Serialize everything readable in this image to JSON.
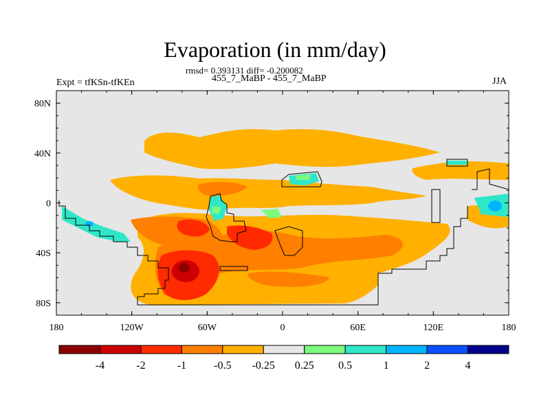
{
  "title": "Evaporation (in mm/day)",
  "stats_line": "rmsd= 0.393131 diff= -0.200082",
  "periods_line": "455_7_MaBP - 455_7_MaBP",
  "experiment": "Expt = tfKSn-tfKEn",
  "season": "JJA",
  "map": {
    "lat_ticks": [
      "80N",
      "40N",
      "0",
      "40S",
      "80S"
    ],
    "lat_values": [
      80,
      40,
      0,
      -40,
      -80
    ],
    "lon_ticks": [
      "180",
      "120W",
      "60W",
      "0",
      "60E",
      "120E",
      "180"
    ],
    "lon_values": [
      -180,
      -120,
      -60,
      0,
      60,
      120,
      180
    ],
    "lat_range": [
      -90,
      90
    ],
    "lon_range": [
      -180,
      180
    ]
  },
  "colorbar": {
    "labels": [
      "-4",
      "-2",
      "-1",
      "-0.5",
      "-0.25",
      "0.25",
      "0.5",
      "1",
      "2",
      "4"
    ],
    "colors": [
      "#8b0000",
      "#cc0000",
      "#ff2a00",
      "#ff7f00",
      "#ffb000",
      "#e6e6e6",
      "#7dfa7d",
      "#2fe6c8",
      "#00b4ff",
      "#0a50ff",
      "#00008b"
    ]
  },
  "palette": {
    "neutral": "#e6e6e6",
    "orange": "#ffb000",
    "dark_orange": "#ff7f00",
    "red_orange": "#ff2a00",
    "red": "#cc0000",
    "dark_red": "#8b0000",
    "green": "#7dfa7d",
    "cyan": "#2fe6c8",
    "light_blue": "#00b4ff"
  }
}
